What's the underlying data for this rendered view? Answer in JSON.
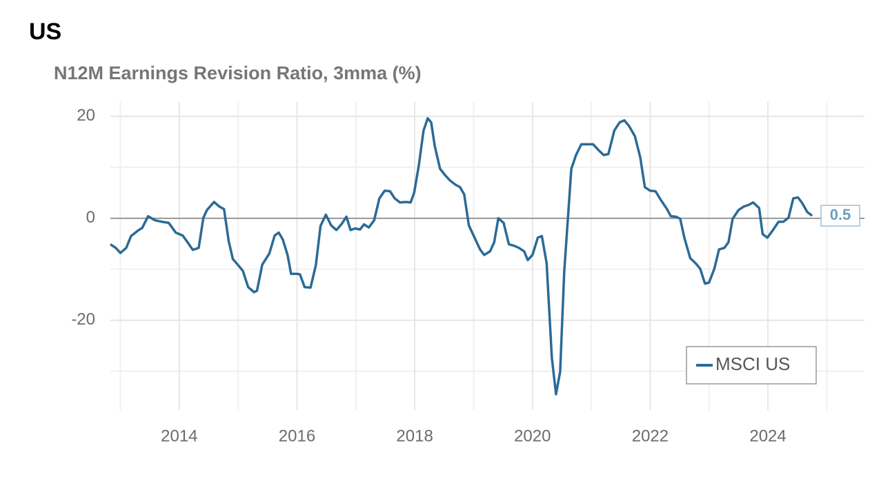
{
  "chart_data": {
    "type": "line",
    "title": "US",
    "subtitle": "N12M Earnings Revision Ratio, 3mma (%)",
    "xlim": [
      2012.83,
      2025.64
    ],
    "ylim": [
      -37.6,
      22.8
    ],
    "xticks": [
      2014,
      2016,
      2018,
      2020,
      2022,
      2024
    ],
    "yticks": [
      -20,
      0,
      20
    ],
    "x_minor_grid": [
      2013,
      2015,
      2017,
      2019,
      2021,
      2023,
      2025
    ],
    "y_minor_grid": [
      -30,
      -10,
      10
    ],
    "grid": true,
    "legend": "bottom-right",
    "series": [
      {
        "name": "MSCI US",
        "color": "#2b6a96",
        "x": [
          2012.83,
          2012.92,
          2013.0,
          2013.1,
          2013.18,
          2013.3,
          2013.37,
          2013.47,
          2013.59,
          2013.71,
          2013.82,
          2013.94,
          2014.06,
          2014.14,
          2014.23,
          2014.33,
          2014.41,
          2014.47,
          2014.59,
          2014.68,
          2014.76,
          2014.84,
          2014.91,
          2015.0,
          2015.08,
          2015.17,
          2015.27,
          2015.32,
          2015.41,
          2015.53,
          2015.62,
          2015.69,
          2015.76,
          2015.84,
          2015.9,
          2016.0,
          2016.05,
          2016.13,
          2016.23,
          2016.32,
          2016.4,
          2016.49,
          2016.58,
          2016.67,
          2016.76,
          2016.84,
          2016.91,
          2016.99,
          2017.07,
          2017.14,
          2017.22,
          2017.31,
          2017.4,
          2017.49,
          2017.58,
          2017.66,
          2017.75,
          2017.85,
          2017.93,
          2017.99,
          2018.07,
          2018.15,
          2018.22,
          2018.28,
          2018.34,
          2018.43,
          2018.52,
          2018.6,
          2018.69,
          2018.77,
          2018.84,
          2018.92,
          2019.02,
          2019.11,
          2019.18,
          2019.28,
          2019.35,
          2019.42,
          2019.51,
          2019.6,
          2019.69,
          2019.77,
          2019.86,
          2019.92,
          2020.0,
          2020.09,
          2020.16,
          2020.24,
          2020.33,
          2020.4,
          2020.47,
          2020.54,
          2020.66,
          2020.74,
          2020.83,
          2020.94,
          2021.03,
          2021.12,
          2021.21,
          2021.29,
          2021.39,
          2021.48,
          2021.56,
          2021.64,
          2021.74,
          2021.83,
          2021.91,
          2022.0,
          2022.09,
          2022.18,
          2022.28,
          2022.35,
          2022.44,
          2022.51,
          2022.58,
          2022.68,
          2022.77,
          2022.85,
          2022.93,
          2023.0,
          2023.09,
          2023.17,
          2023.26,
          2023.33,
          2023.4,
          2023.5,
          2023.59,
          2023.67,
          2023.75,
          2023.85,
          2023.91,
          2023.99,
          2024.08,
          2024.18,
          2024.26,
          2024.35,
          2024.43,
          2024.51,
          2024.58,
          2024.67,
          2024.75
        ],
        "values": [
          -5.1,
          -5.8,
          -6.8,
          -5.8,
          -3.5,
          -2.4,
          -1.9,
          0.4,
          -0.4,
          -0.7,
          -0.9,
          -2.8,
          -3.4,
          -4.7,
          -6.2,
          -5.8,
          0.1,
          1.6,
          3.2,
          2.3,
          1.8,
          -4.5,
          -8,
          -9.2,
          -10.3,
          -13.5,
          -14.5,
          -14.2,
          -9.1,
          -6.9,
          -3.4,
          -2.8,
          -4.2,
          -7.2,
          -10.9,
          -10.9,
          -11,
          -13.5,
          -13.6,
          -9.2,
          -1.5,
          0.7,
          -1.4,
          -2.3,
          -1.1,
          0.3,
          -2.3,
          -2,
          -2.2,
          -1.2,
          -1.8,
          -0.4,
          3.9,
          5.4,
          5.3,
          3.9,
          3.1,
          3.2,
          3.1,
          5,
          10.4,
          17.2,
          19.6,
          18.8,
          14.2,
          9.7,
          8.4,
          7.4,
          6.6,
          6.1,
          4.7,
          -1.4,
          -3.9,
          -6.1,
          -7.2,
          -6.5,
          -4.7,
          0,
          -0.9,
          -5.1,
          -5.4,
          -5.8,
          -6.5,
          -8.2,
          -7.2,
          -3.8,
          -3.5,
          -8.8,
          -27.4,
          -34.5,
          -30.1,
          -10.5,
          9.7,
          12.4,
          14.5,
          14.5,
          14.5,
          13.4,
          12.4,
          12.6,
          17.2,
          18.8,
          19.2,
          18.1,
          16.1,
          12,
          6.1,
          5.4,
          5.3,
          3.6,
          1.9,
          0.4,
          0.3,
          -0.1,
          -3.8,
          -7.8,
          -8.8,
          -9.9,
          -12.8,
          -12.6,
          -9.9,
          -6.1,
          -5.8,
          -4.7,
          -0.1,
          1.6,
          2.3,
          2.6,
          3.1,
          2,
          -3.1,
          -3.8,
          -2.4,
          -0.7,
          -0.7,
          0.1,
          3.9,
          4.1,
          3,
          1.2,
          0.5
        ]
      }
    ]
  }
}
